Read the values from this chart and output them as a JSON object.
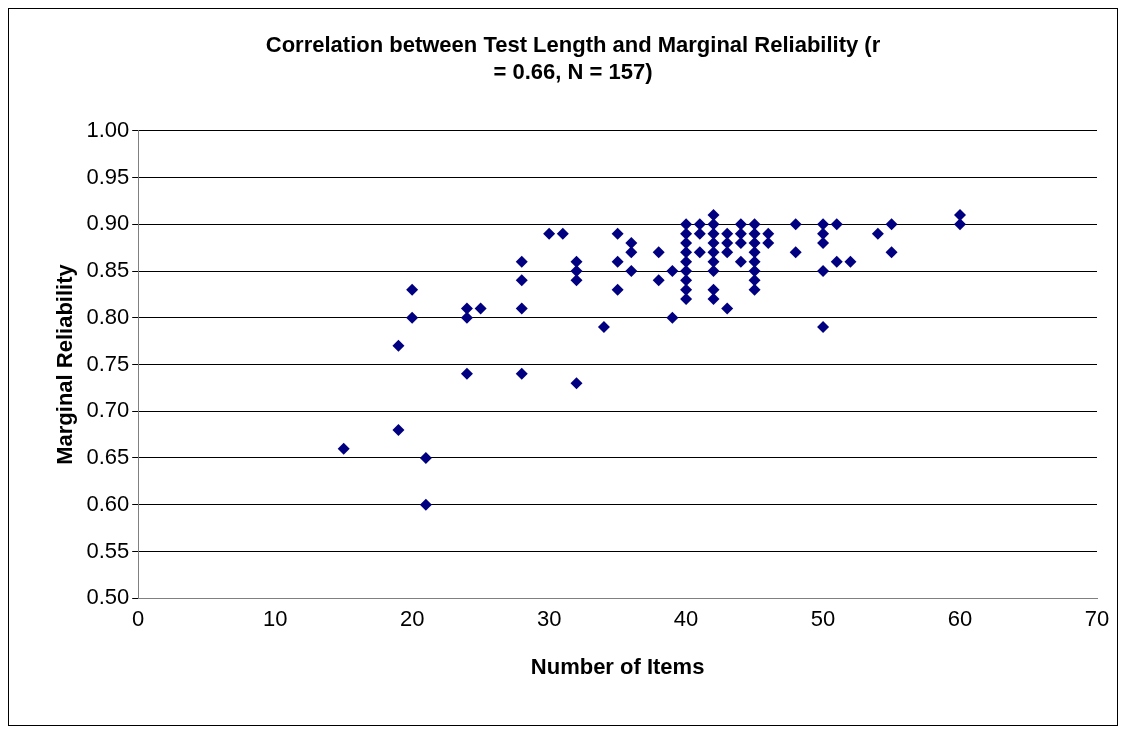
{
  "chart_data": {
    "type": "scatter",
    "title": "Correlation between Test Length and Marginal Reliability (r = 0.66, N = 157)",
    "xlabel": "Number of Items",
    "ylabel": "Marginal Reliability",
    "x": [
      15,
      19,
      19,
      20,
      20,
      21,
      21,
      24,
      24,
      24,
      25,
      28,
      28,
      28,
      28,
      30,
      31,
      32,
      32,
      32,
      32,
      34,
      35,
      35,
      35,
      36,
      36,
      36,
      38,
      38,
      39,
      39,
      40,
      40,
      40,
      40,
      40,
      40,
      40,
      40,
      40,
      41,
      41,
      41,
      42,
      42,
      42,
      42,
      42,
      42,
      42,
      42,
      42,
      43,
      43,
      43,
      43,
      44,
      44,
      44,
      44,
      45,
      45,
      45,
      45,
      45,
      45,
      45,
      45,
      46,
      46,
      48,
      48,
      50,
      50,
      50,
      50,
      50,
      51,
      51,
      52,
      54,
      55,
      55,
      60,
      60
    ],
    "values": [
      0.66,
      0.77,
      0.68,
      0.83,
      0.8,
      0.65,
      0.6,
      0.81,
      0.8,
      0.74,
      0.81,
      0.86,
      0.84,
      0.81,
      0.74,
      0.89,
      0.89,
      0.86,
      0.85,
      0.84,
      0.73,
      0.79,
      0.89,
      0.86,
      0.83,
      0.88,
      0.87,
      0.85,
      0.87,
      0.84,
      0.85,
      0.8,
      0.9,
      0.89,
      0.88,
      0.87,
      0.86,
      0.85,
      0.84,
      0.83,
      0.82,
      0.9,
      0.89,
      0.87,
      0.91,
      0.9,
      0.89,
      0.88,
      0.87,
      0.86,
      0.85,
      0.83,
      0.82,
      0.89,
      0.88,
      0.87,
      0.81,
      0.9,
      0.89,
      0.88,
      0.86,
      0.9,
      0.89,
      0.88,
      0.87,
      0.86,
      0.85,
      0.84,
      0.83,
      0.89,
      0.88,
      0.9,
      0.87,
      0.9,
      0.89,
      0.88,
      0.85,
      0.79,
      0.9,
      0.86,
      0.86,
      0.89,
      0.9,
      0.87,
      0.91,
      0.9
    ],
    "color": "#000080",
    "marker": "diamond",
    "grid": "y",
    "xlim": [
      0,
      70
    ],
    "xticks": [
      0,
      10,
      20,
      30,
      40,
      50,
      60,
      70
    ],
    "ylim": [
      0.5,
      1.0
    ],
    "yticks": [
      {
        "value": 0.5,
        "label": "0.50"
      },
      {
        "value": 0.55,
        "label": "0.55"
      },
      {
        "value": 0.6,
        "label": "0.60"
      },
      {
        "value": 0.65,
        "label": "0.65"
      },
      {
        "value": 0.7,
        "label": "0.70"
      },
      {
        "value": 0.75,
        "label": "0.75"
      },
      {
        "value": 0.8,
        "label": "0.80"
      },
      {
        "value": 0.85,
        "label": "0.85"
      },
      {
        "value": 0.9,
        "label": "0.90"
      },
      {
        "value": 0.95,
        "label": "0.95"
      },
      {
        "value": 1.0,
        "label": "1.00"
      }
    ]
  }
}
